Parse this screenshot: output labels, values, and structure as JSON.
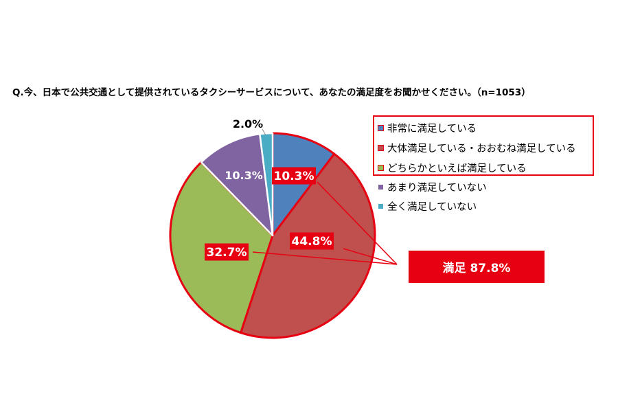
{
  "question": "Q.今、日本で公共交通として提供されているタクシーサービスについて、あなたの満足度をお聞かせください。（n=1053）",
  "chart_data": {
    "type": "pie",
    "title": "",
    "unit": "%",
    "slices": [
      {
        "name": "非常に満足している",
        "value": 10.3,
        "label": "10.3%",
        "color": "#4f81bd",
        "highlight": true
      },
      {
        "name": "大体満足している・おおむね満足している",
        "value": 44.8,
        "label": "44.8%",
        "color": "#c0504d",
        "highlight": true
      },
      {
        "name": "どちらかといえば満足している",
        "value": 32.7,
        "label": "32.7%",
        "color": "#9bbb59",
        "highlight": true
      },
      {
        "name": "あまり満足していない",
        "value": 10.3,
        "label": "10.3%",
        "color": "#8064a2",
        "highlight": false
      },
      {
        "name": "全く満足していない",
        "value": 2.0,
        "label": "2.0%",
        "color": "#4bacc6",
        "highlight": false
      }
    ],
    "legend_position": "right"
  },
  "callout": {
    "text": "満足 87.8%"
  },
  "colors": {
    "highlight_red": "#e60012"
  }
}
